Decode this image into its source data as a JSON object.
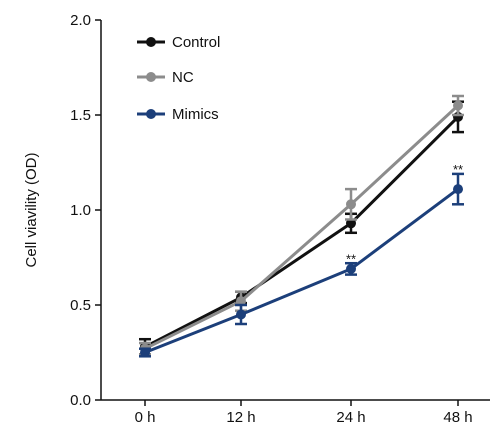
{
  "chart_data": {
    "type": "line",
    "title": "",
    "xlabel": "",
    "ylabel": "Cell viavility (OD)",
    "categories": [
      "0 h",
      "12 h",
      "24 h",
      "48 h"
    ],
    "ylim": [
      0,
      2.0
    ],
    "yticks": [
      0.0,
      0.5,
      1.0,
      1.5,
      2.0
    ],
    "ytick_labels": [
      "0.0",
      "0.5",
      "1.0",
      "1.5",
      "2.0"
    ],
    "grid": false,
    "legend": "top-left",
    "series": [
      {
        "name": "Control",
        "color": "#111111",
        "values": [
          0.28,
          0.54,
          0.93,
          1.49
        ],
        "errors": [
          0.04,
          0.03,
          0.05,
          0.08
        ]
      },
      {
        "name": "NC",
        "color": "#8c8c8c",
        "values": [
          0.27,
          0.52,
          1.03,
          1.55
        ],
        "errors": [
          0.03,
          0.05,
          0.08,
          0.05
        ]
      },
      {
        "name": "Mimics",
        "color": "#1c3f7a",
        "values": [
          0.25,
          0.45,
          0.69,
          1.11
        ],
        "errors": [
          0.02,
          0.05,
          0.03,
          0.08
        ]
      }
    ],
    "annotations": [
      {
        "text": "**",
        "category": "24 h",
        "y": 0.745
      },
      {
        "text": "**",
        "category": "48 h",
        "y": 1.215
      }
    ]
  }
}
